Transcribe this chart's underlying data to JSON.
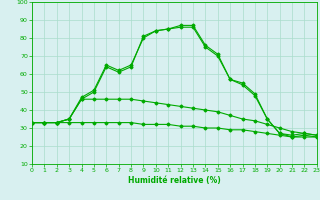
{
  "xlabel": "Humidité relative (%)",
  "x": [
    0,
    1,
    2,
    3,
    4,
    5,
    6,
    7,
    8,
    9,
    10,
    11,
    12,
    13,
    14,
    15,
    16,
    17,
    18,
    19,
    20,
    21,
    22,
    23
  ],
  "line1": [
    33,
    33,
    33,
    35,
    46,
    50,
    64,
    61,
    64,
    81,
    84,
    85,
    87,
    87,
    76,
    71,
    57,
    55,
    49,
    35,
    27,
    26,
    27,
    26
  ],
  "line2": [
    33,
    33,
    33,
    35,
    47,
    51,
    65,
    62,
    65,
    80,
    84,
    85,
    86,
    86,
    75,
    70,
    57,
    54,
    48,
    35,
    27,
    25,
    26,
    25
  ],
  "line3": [
    33,
    33,
    33,
    35,
    46,
    46,
    46,
    46,
    46,
    45,
    44,
    43,
    42,
    41,
    40,
    39,
    37,
    35,
    34,
    32,
    30,
    28,
    27,
    26
  ],
  "line4": [
    33,
    33,
    33,
    33,
    33,
    33,
    33,
    33,
    33,
    32,
    32,
    32,
    31,
    31,
    30,
    30,
    29,
    29,
    28,
    27,
    26,
    25,
    25,
    25
  ],
  "line_color": "#00aa00",
  "bg_color": "#d8f0f0",
  "grid_color": "#aaddcc",
  "ylim": [
    10,
    100
  ],
  "xlim": [
    0,
    23
  ],
  "yticks": [
    10,
    20,
    30,
    40,
    50,
    60,
    70,
    80,
    90,
    100
  ],
  "xticks": [
    0,
    1,
    2,
    3,
    4,
    5,
    6,
    7,
    8,
    9,
    10,
    11,
    12,
    13,
    14,
    15,
    16,
    17,
    18,
    19,
    20,
    21,
    22,
    23
  ]
}
